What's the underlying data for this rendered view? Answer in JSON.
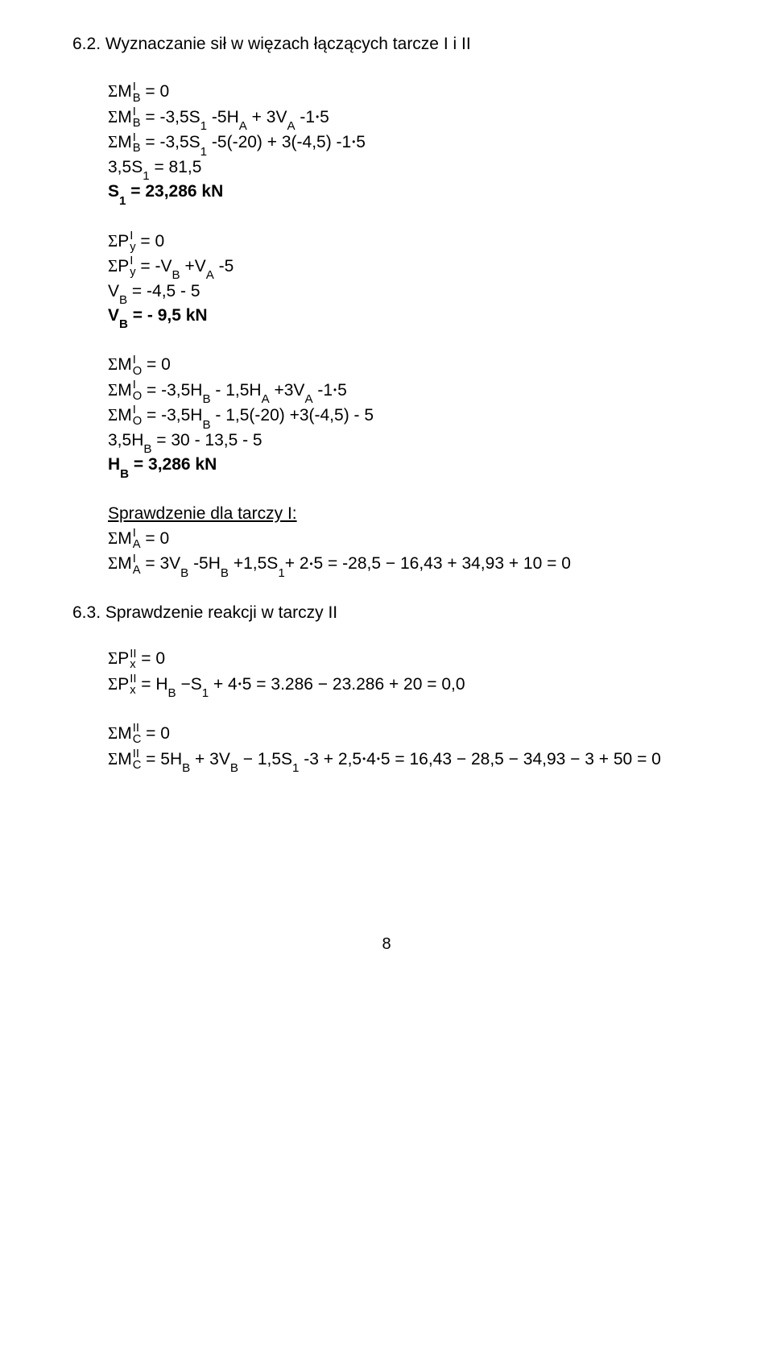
{
  "heading": "6.2. Wyznaczanie  sił w więzach łączących tarcze I i II",
  "b1": {
    "l1a": "M",
    "l1sup": "I",
    "l1sub": "B",
    "l1b": " = 0",
    "l2a": "M",
    "l2sup": "I",
    "l2sub": "B",
    "l2b": " =  -3,5S",
    "l2c": "1",
    "l2d": " -5H",
    "l2e": "A",
    "l2f": " + 3V",
    "l2g": "A",
    "l2h": " -1",
    "l2i": "5",
    "l3a": "M",
    "l3sup": "I",
    "l3sub": "B",
    "l3b": " =  -3,5S",
    "l3c": "1",
    "l3d": " -5(-20) + 3(-4,5) -1",
    "l3e": "5",
    "l4a": "3,5S",
    "l4b": "1",
    "l4c": " = 81,5",
    "l5a": "S",
    "l5b": "1",
    "l5c": " = 23,286 kN"
  },
  "b2": {
    "l1a": "P",
    "l1sup": "I",
    "l1sub": "y",
    "l1b": " = 0",
    "l2a": "P",
    "l2sup": "I",
    "l2sub": "y",
    "l2b": " = -V",
    "l2c": "B",
    "l2d": " +V",
    "l2e": "A",
    "l2f": " -5",
    "l3a": "V",
    "l3b": "B",
    "l3c": " = -4,5 - 5",
    "l4a": "V",
    "l4b": "B",
    "l4c": " = - 9,5 kN"
  },
  "b3": {
    "l1a": "M",
    "l1sup": "I",
    "l1sub": "O",
    "l1b": " = 0",
    "l2a": "M",
    "l2sup": "I",
    "l2sub": "O",
    "l2b": " = -3,5H",
    "l2c": "B",
    "l2d": " - 1,5H",
    "l2e": "A",
    "l2f": " +3V",
    "l2g": "A",
    "l2h": " -1",
    "l2i": "5",
    "l3a": "M",
    "l3sup": "I",
    "l3sub": "O",
    "l3b": " = -3,5H",
    "l3c": "B",
    "l3d": " - 1,5(-20) +3(-4,5) - 5",
    "l4a": "3,5H",
    "l4b": "B",
    "l4c": " = 30 - 13,5 - 5",
    "l5a": "H",
    "l5b": "B",
    "l5c": " = 3,286 kN"
  },
  "b4": {
    "h": "Sprawdzenie dla tarczy I:",
    "l1a": "M",
    "l1sup": "I",
    "l1sub": "A",
    "l1b": " = 0",
    "l2a": "M",
    "l2sup": "I",
    "l2sub": "A",
    "l2b": " = 3V",
    "l2c": "B",
    "l2d": " -5H",
    "l2e": "B",
    "l2f": " +1,5S",
    "l2g": "1",
    "l2h": "+ 2",
    "l2i": "5 =  -28,5 − 16,43 + 34,93 + 10 = 0"
  },
  "h63": "6.3. Sprawdzenie reakcji w tarczy II",
  "b5": {
    "l1a": "P",
    "l1sup": "II",
    "l1sub": "x",
    "l1b": " = 0",
    "l2a": "P",
    "l2sup": "II",
    "l2sub": "x",
    "l2b": " = H",
    "l2c": "B",
    "l2d": " −S",
    "l2e": "1",
    "l2f": " + 4",
    "l2g": "5 = 3.286 − 23.286 + 20 = 0,0"
  },
  "b6": {
    "l1a": "M",
    "l1sup": "II",
    "l1sub": "C",
    "l1b": " = 0",
    "l2a": "M",
    "l2sup": "II",
    "l2sub": "C",
    "l2b": " = 5H",
    "l2c": "B",
    "l2d": " + 3V",
    "l2e": "B",
    "l2f": " − 1,5S",
    "l2g": "1",
    "l2h": " -3 + 2,5",
    "l2i": "4",
    "l2j": "5 = 16,43 − 28,5 − 34,93 − 3 + 50 = 0"
  },
  "page": "8"
}
